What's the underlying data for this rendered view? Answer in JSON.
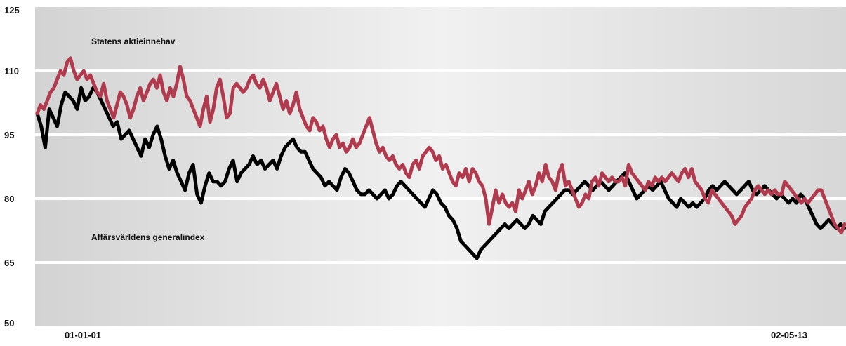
{
  "chart_data": {
    "type": "line",
    "title": "",
    "xlabel": "",
    "ylabel": "",
    "ylim": [
      50,
      125
    ],
    "yticks": [
      125,
      110,
      95,
      80,
      65,
      50
    ],
    "x_labels": [
      "01-01-01",
      "02-05-13"
    ],
    "grid": true,
    "background": "alternating grey bands with white horizontal gridlines",
    "series": [
      {
        "name": "Statens aktieinnehav",
        "color": "#b03a4e",
        "values": [
          100,
          102,
          101,
          103,
          105,
          106,
          108,
          110,
          109,
          112,
          113,
          110,
          108,
          109,
          110,
          108,
          109,
          107,
          105,
          104,
          107,
          103,
          101,
          99,
          102,
          105,
          104,
          102,
          99,
          101,
          104,
          106,
          103,
          105,
          107,
          108,
          106,
          109,
          105,
          103,
          106,
          104,
          107,
          111,
          108,
          104,
          103,
          101,
          99,
          97,
          101,
          104,
          98,
          101,
          106,
          108,
          104,
          99,
          100,
          106,
          107,
          106,
          105,
          106,
          108,
          109,
          107,
          106,
          108,
          106,
          103,
          105,
          107,
          104,
          101,
          103,
          100,
          102,
          105,
          101,
          99,
          97,
          96,
          99,
          98,
          96,
          97,
          94,
          92,
          94,
          95,
          92,
          93,
          91,
          92,
          94,
          92,
          93,
          95,
          97,
          99,
          96,
          93,
          91,
          92,
          90,
          89,
          90,
          88,
          87,
          88,
          86,
          85,
          88,
          89,
          87,
          90,
          91,
          92,
          91,
          89,
          90,
          87,
          88,
          86,
          84,
          83,
          86,
          85,
          87,
          84,
          87,
          86,
          84,
          83,
          80,
          74,
          78,
          82,
          79,
          81,
          79,
          78,
          79,
          77,
          82,
          80,
          82,
          84,
          81,
          83,
          86,
          84,
          88,
          85,
          84,
          82,
          86,
          88,
          83,
          84,
          82,
          80,
          78,
          79,
          81,
          80,
          84,
          85,
          83,
          86,
          85,
          84,
          85,
          84,
          84,
          85,
          83,
          88,
          86,
          85,
          84,
          83,
          82,
          84,
          83,
          85,
          84,
          85,
          84,
          85,
          86,
          85,
          84,
          86,
          87,
          85,
          87,
          84,
          83,
          82,
          80,
          79,
          82,
          81,
          80,
          79,
          78,
          77,
          76,
          74,
          75,
          76,
          78,
          79,
          80,
          82,
          83,
          82,
          81,
          82,
          81,
          82,
          81,
          81,
          84,
          83,
          82,
          81,
          80,
          79,
          80,
          79,
          80,
          81,
          82,
          82,
          80,
          78,
          76,
          74,
          73,
          72,
          74
        ]
      },
      {
        "name": "Affärsvärldens generalindex",
        "color": "#000000",
        "values": [
          100,
          97,
          92,
          101,
          99,
          97,
          102,
          105,
          104,
          103,
          101,
          106,
          103,
          104,
          106,
          105,
          103,
          101,
          99,
          97,
          98,
          94,
          95,
          96,
          94,
          92,
          90,
          94,
          92,
          95,
          97,
          94,
          90,
          87,
          89,
          86,
          84,
          82,
          86,
          88,
          81,
          79,
          83,
          86,
          84,
          84,
          83,
          84,
          87,
          89,
          84,
          86,
          87,
          88,
          90,
          88,
          89,
          87,
          88,
          89,
          87,
          90,
          92,
          93,
          94,
          92,
          91,
          91,
          89,
          87,
          86,
          85,
          83,
          84,
          83,
          82,
          85,
          87,
          86,
          84,
          82,
          81,
          81,
          82,
          81,
          80,
          81,
          82,
          80,
          81,
          83,
          84,
          83,
          82,
          81,
          80,
          79,
          78,
          80,
          82,
          81,
          79,
          78,
          76,
          75,
          73,
          70,
          69,
          68,
          67,
          66,
          68,
          69,
          70,
          71,
          72,
          73,
          74,
          73,
          74,
          75,
          74,
          73,
          74,
          76,
          75,
          74,
          77,
          78,
          79,
          80,
          81,
          82,
          82,
          81,
          82,
          83,
          84,
          83,
          82,
          83,
          84,
          83,
          82,
          83,
          84,
          85,
          86,
          84,
          82,
          80,
          81,
          82,
          83,
          82,
          83,
          84,
          82,
          80,
          79,
          78,
          80,
          79,
          78,
          79,
          78,
          79,
          80,
          82,
          83,
          82,
          83,
          84,
          83,
          82,
          81,
          82,
          83,
          84,
          82,
          81,
          82,
          83,
          82,
          81,
          80,
          81,
          80,
          79,
          80,
          79,
          81,
          80,
          78,
          76,
          74,
          73,
          74,
          75,
          74,
          73,
          74,
          73
        ]
      }
    ],
    "annotations": [
      {
        "text": "Statens aktieinnehav"
      },
      {
        "text": "Affärsvärldens generalindex"
      }
    ]
  }
}
